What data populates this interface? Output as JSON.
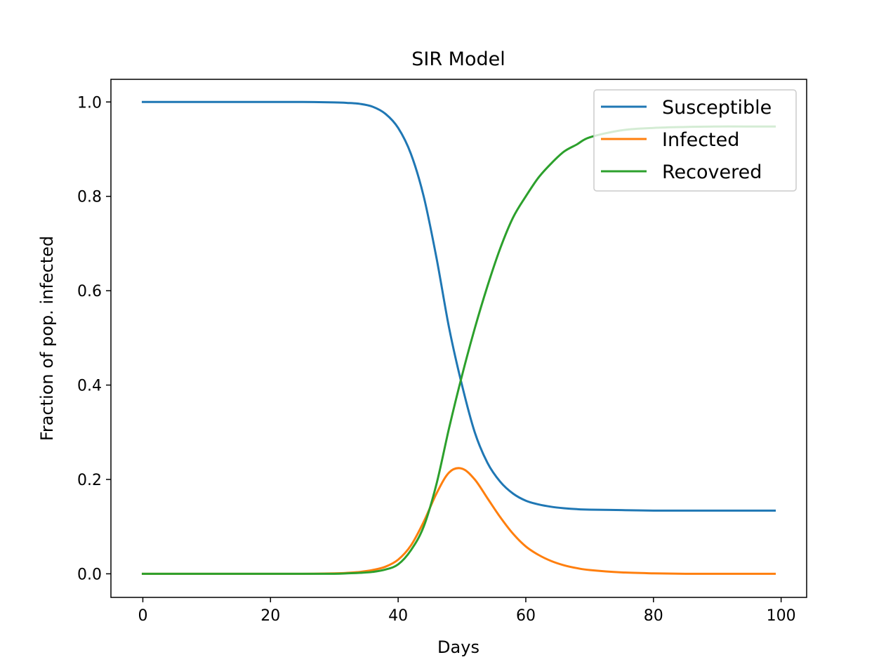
{
  "chart_data": {
    "type": "line",
    "title": "SIR Model",
    "xlabel": "Days",
    "ylabel": "Fraction of pop. infected",
    "xlim": [
      -5,
      104
    ],
    "ylim": [
      -0.05,
      1.048
    ],
    "xticks": [
      0,
      20,
      40,
      60,
      80,
      100
    ],
    "xtick_labels": [
      "0",
      "20",
      "40",
      "60",
      "80",
      "100"
    ],
    "yticks": [
      0.0,
      0.2,
      0.4,
      0.6,
      0.8,
      1.0
    ],
    "ytick_labels": [
      "0.0",
      "0.2",
      "0.4",
      "0.6",
      "0.8",
      "1.0"
    ],
    "grid": false,
    "legend_position": "top-right",
    "x": [
      0,
      5,
      10,
      15,
      20,
      25,
      30,
      32,
      34,
      36,
      38,
      40,
      42,
      44,
      46,
      48,
      50,
      52,
      54,
      56,
      58,
      60,
      62,
      64,
      66,
      68,
      70,
      75,
      80,
      85,
      90,
      95,
      99
    ],
    "series": [
      {
        "name": "Susceptible",
        "color": "#1f77b4",
        "values": [
          1.0,
          1.0,
          1.0,
          1.0,
          1.0,
          1.0,
          0.999,
          0.998,
          0.996,
          0.99,
          0.975,
          0.945,
          0.89,
          0.8,
          0.67,
          0.52,
          0.4,
          0.3,
          0.235,
          0.195,
          0.17,
          0.155,
          0.147,
          0.142,
          0.139,
          0.137,
          0.136,
          0.135,
          0.134,
          0.134,
          0.134,
          0.134,
          0.134
        ]
      },
      {
        "name": "Infected",
        "color": "#ff7f0e",
        "values": [
          0.0,
          0.0,
          0.0,
          0.0,
          0.0,
          0.0,
          0.001,
          0.002,
          0.004,
          0.008,
          0.015,
          0.03,
          0.06,
          0.11,
          0.17,
          0.215,
          0.223,
          0.2,
          0.16,
          0.12,
          0.085,
          0.058,
          0.04,
          0.027,
          0.018,
          0.012,
          0.008,
          0.003,
          0.001,
          0.0,
          0.0,
          0.0,
          0.0
        ]
      },
      {
        "name": "Recovered",
        "color": "#2ca02c",
        "values": [
          0.0,
          0.0,
          0.0,
          0.0,
          0.0,
          0.0,
          0.0,
          0.001,
          0.002,
          0.004,
          0.009,
          0.02,
          0.05,
          0.1,
          0.19,
          0.31,
          0.42,
          0.52,
          0.61,
          0.69,
          0.755,
          0.8,
          0.84,
          0.87,
          0.895,
          0.91,
          0.925,
          0.94,
          0.945,
          0.947,
          0.948,
          0.948,
          0.948
        ]
      }
    ]
  }
}
